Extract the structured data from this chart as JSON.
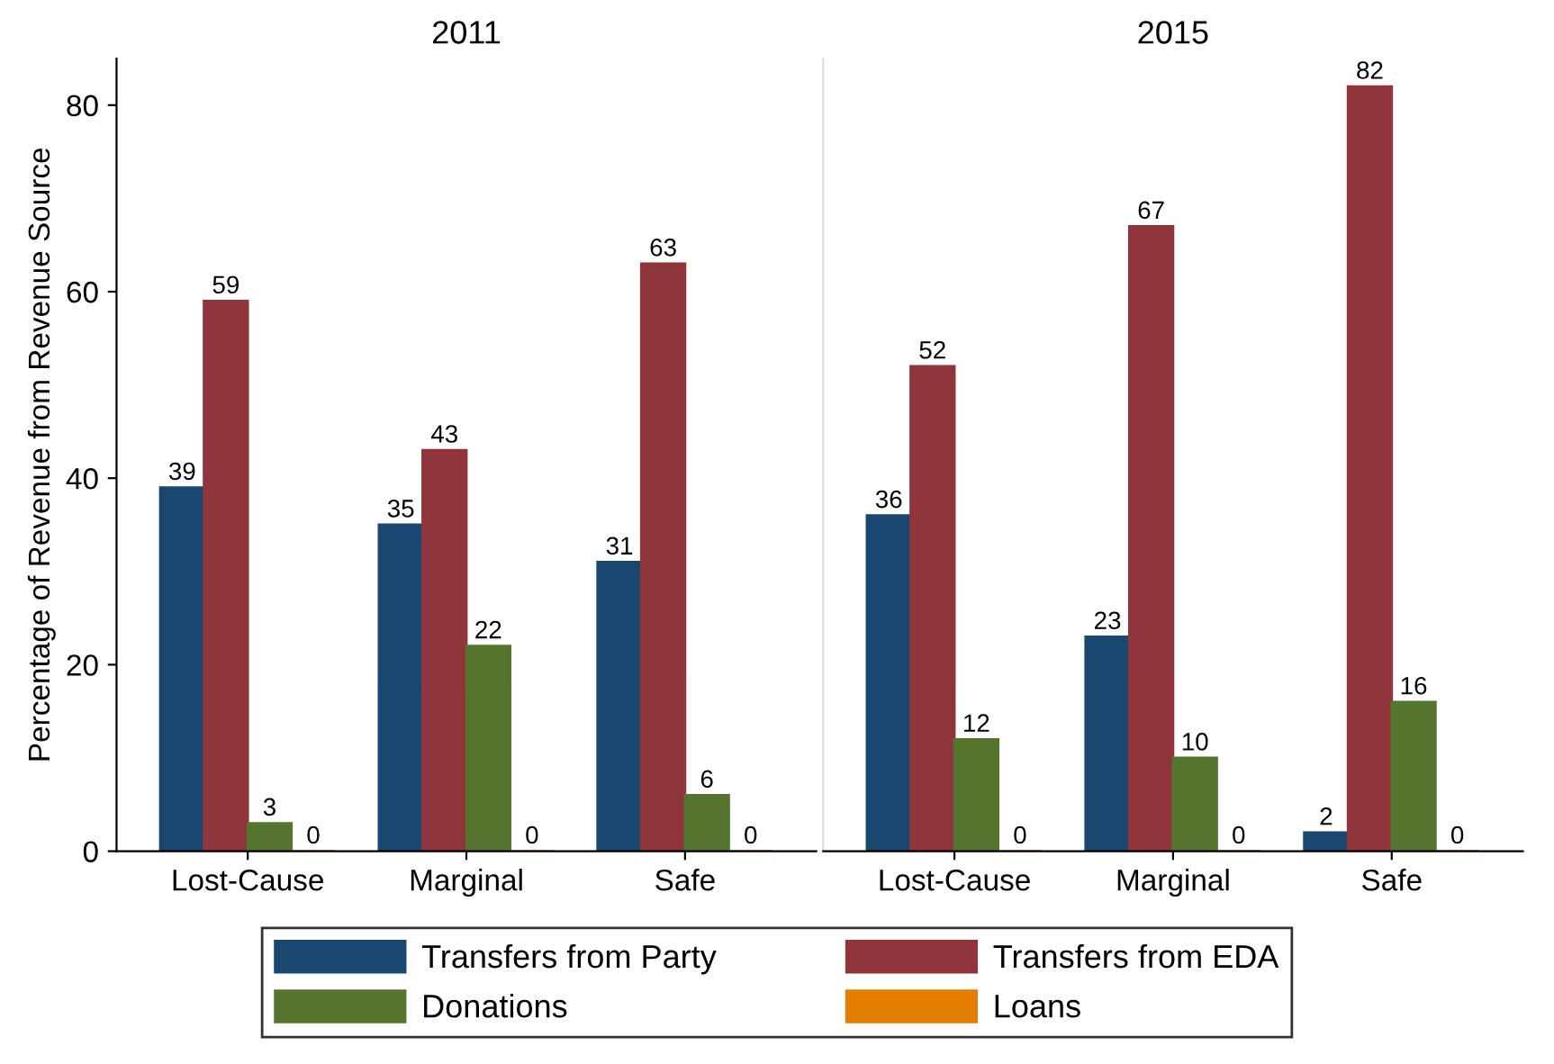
{
  "chart_data": [
    {
      "type": "bar",
      "title": "2011",
      "ylabel": "Percentage of Revenue from Revenue Source",
      "categories": [
        "Lost-Cause",
        "Marginal",
        "Safe"
      ],
      "ylim": [
        0,
        85
      ],
      "yticks": [
        0,
        20,
        40,
        60,
        80
      ],
      "data_labels": true,
      "legend": "bottom",
      "series": [
        {
          "name": "Transfers from Party",
          "color": "#1a476f",
          "values": [
            39,
            35,
            31
          ]
        },
        {
          "name": "Transfers from EDA",
          "color": "#90353b",
          "values": [
            59,
            43,
            63
          ]
        },
        {
          "name": "Donations",
          "color": "#55752f",
          "values": [
            3,
            22,
            6
          ]
        },
        {
          "name": "Loans",
          "color": "#e37e00",
          "values": [
            0,
            0,
            0
          ]
        }
      ]
    },
    {
      "type": "bar",
      "title": "2015",
      "categories": [
        "Lost-Cause",
        "Marginal",
        "Safe"
      ],
      "ylim": [
        0,
        85
      ],
      "yticks": [
        0,
        20,
        40,
        60,
        80
      ],
      "tick_labels": "x",
      "data_labels": true,
      "series": [
        {
          "color": "#1a476f",
          "values": [
            36,
            23,
            2
          ]
        },
        {
          "color": "#90353b",
          "values": [
            52,
            67,
            82
          ]
        },
        {
          "color": "#55752f",
          "values": [
            12,
            10,
            16
          ]
        },
        {
          "color": "#e37e00",
          "values": [
            0,
            0,
            0
          ]
        }
      ]
    }
  ]
}
